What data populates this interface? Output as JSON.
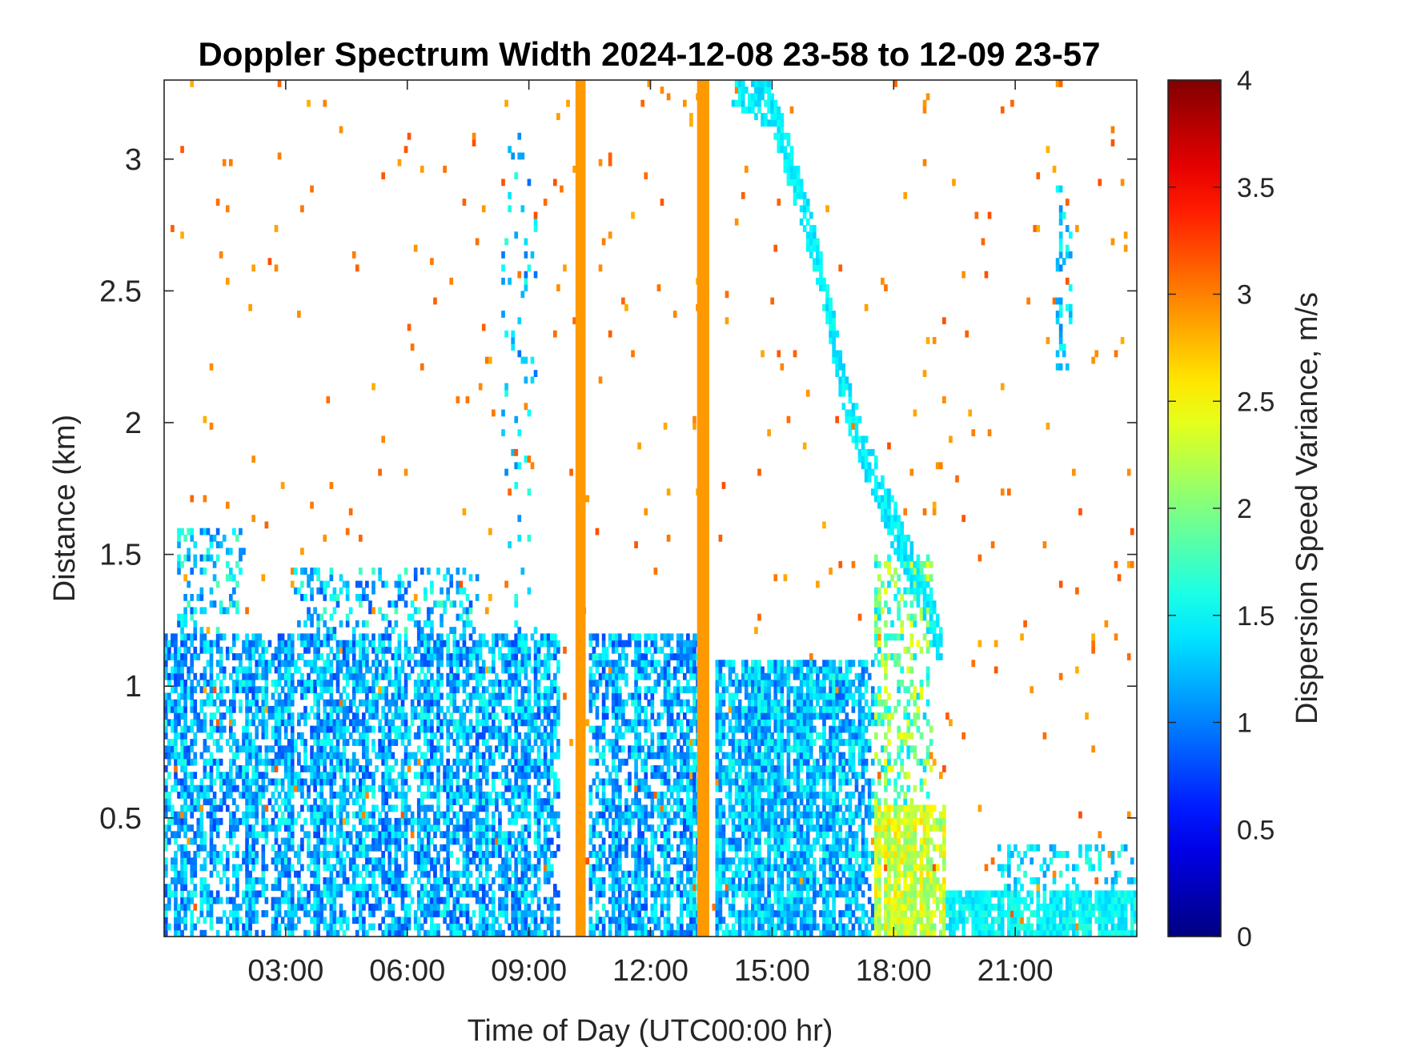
{
  "chart_data": {
    "type": "heatmap",
    "title": "Doppler Spectrum Width 2024-12-08 23-58 to 12-09 23-57",
    "xlabel": "Time of Day (UTC00:00 hr)",
    "ylabel": "Distance (km)",
    "xlim_hours": [
      0,
      24
    ],
    "ylim_km": [
      0.05,
      3.3
    ],
    "x_ticks": [
      {
        "value": 3,
        "label": "03:00"
      },
      {
        "value": 6,
        "label": "06:00"
      },
      {
        "value": 9,
        "label": "09:00"
      },
      {
        "value": 12,
        "label": "12:00"
      },
      {
        "value": 15,
        "label": "15:00"
      },
      {
        "value": 18,
        "label": "18:00"
      },
      {
        "value": 21,
        "label": "21:00"
      }
    ],
    "y_ticks": [
      {
        "value": 0.5,
        "label": "0.5"
      },
      {
        "value": 1,
        "label": "1"
      },
      {
        "value": 1.5,
        "label": "1.5"
      },
      {
        "value": 2,
        "label": "2"
      },
      {
        "value": 2.5,
        "label": "2.5"
      },
      {
        "value": 3,
        "label": "3"
      }
    ],
    "colorbar": {
      "label": "Dispersion Speed Variance, m/s",
      "range": [
        0,
        4
      ],
      "colormap": "jet",
      "ticks": [
        {
          "value": 0,
          "label": "0"
        },
        {
          "value": 0.5,
          "label": "0.5"
        },
        {
          "value": 1,
          "label": "1"
        },
        {
          "value": 1.5,
          "label": "1.5"
        },
        {
          "value": 2,
          "label": "2"
        },
        {
          "value": 2.5,
          "label": "2.5"
        },
        {
          "value": 3,
          "label": "3"
        },
        {
          "value": 3.5,
          "label": "3.5"
        },
        {
          "value": 4,
          "label": "4"
        }
      ]
    },
    "regions": [
      {
        "t0": 0.0,
        "t1": 9.8,
        "h0": 0.05,
        "h1": 1.2,
        "v": 1.2,
        "spread": 0.45,
        "density": 0.62
      },
      {
        "t0": 0.3,
        "t1": 2.0,
        "h0": 1.2,
        "h1": 1.6,
        "v": 1.35,
        "spread": 0.5,
        "density": 0.3
      },
      {
        "t0": 3.2,
        "t1": 7.8,
        "h0": 1.1,
        "h1": 1.45,
        "v": 1.3,
        "spread": 0.5,
        "density": 0.28
      },
      {
        "t0": 10.5,
        "t1": 13.2,
        "h0": 0.05,
        "h1": 1.2,
        "v": 1.2,
        "spread": 0.45,
        "density": 0.62
      },
      {
        "t0": 13.6,
        "t1": 17.5,
        "h0": 0.05,
        "h1": 1.1,
        "v": 1.25,
        "spread": 0.4,
        "density": 0.75
      },
      {
        "t0": 14.0,
        "t1": 17.4,
        "h0": 0.05,
        "h1": 0.6,
        "v": 1.5,
        "spread": 0.2,
        "density": 0.92
      },
      {
        "t0": 17.4,
        "t1": 19.3,
        "h0": 0.05,
        "h1": 0.55,
        "v": 2.3,
        "spread": 0.35,
        "density": 0.85
      },
      {
        "t0": 17.5,
        "t1": 19.0,
        "h0": 0.55,
        "h1": 1.5,
        "v": 1.9,
        "spread": 0.6,
        "density": 0.35
      },
      {
        "t0": 18.8,
        "t1": 24.0,
        "h0": 0.05,
        "h1": 0.22,
        "v": 1.5,
        "spread": 0.2,
        "density": 0.9
      },
      {
        "t0": 20.5,
        "t1": 24.0,
        "h0": 0.22,
        "h1": 0.4,
        "v": 1.4,
        "spread": 0.3,
        "density": 0.25
      },
      {
        "t0": 8.3,
        "t1": 9.2,
        "h0": 1.2,
        "h1": 3.1,
        "v": 1.3,
        "spread": 0.4,
        "density": 0.08
      },
      {
        "t0": 22.0,
        "t1": 22.4,
        "h0": 2.2,
        "h1": 2.9,
        "v": 1.3,
        "spread": 0.3,
        "density": 0.3
      }
    ],
    "cloud_layer": [
      {
        "t": 14.0,
        "h": 3.3
      },
      {
        "t": 15.0,
        "h": 3.2
      },
      {
        "t": 15.8,
        "h": 2.8
      },
      {
        "t": 16.3,
        "h": 2.5
      },
      {
        "t": 16.8,
        "h": 2.1
      },
      {
        "t": 17.5,
        "h": 1.8
      },
      {
        "t": 18.3,
        "h": 1.5
      },
      {
        "t": 19.0,
        "h": 1.25
      },
      {
        "t": 19.2,
        "h": 1.1
      }
    ],
    "noise_speckle": {
      "value": 3.0,
      "density": 0.012
    },
    "saturated_columns": [
      {
        "t0": 10.15,
        "t1": 10.4,
        "value": 2.9
      },
      {
        "t0": 13.15,
        "t1": 13.45,
        "value": 2.9
      }
    ]
  }
}
